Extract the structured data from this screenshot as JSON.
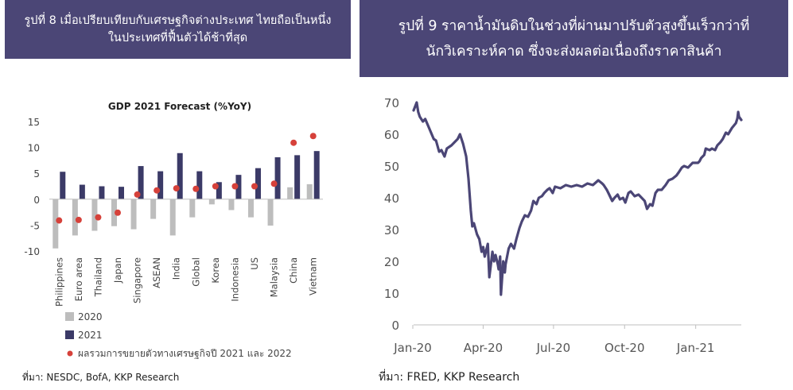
{
  "left_panel": {
    "banner": {
      "line1": "รูปที่ 8 เมื่อเปรียบเทียบกับเศรษฐกิจต่างประเทศ ไทยถือเป็นหนึ่ง",
      "line2": "ในประเทศที่ฟื้นตัวได้ช้าที่สุด"
    },
    "source": "ที่มา: NESDC, BofA, KKP Research"
  },
  "right_panel": {
    "banner": {
      "line1": "รูปที่ 9 ราคาน้ำมันดิบในช่วงที่ผ่านมาปรับตัวสูงขึ้นเร็วกว่าที่",
      "line2": "นักวิเคราะห์คาด ซึ่งจะส่งผลต่อเนื่องถึงราคาสินค้า"
    },
    "source": "ที่มา: FRED, KKP Research"
  },
  "colors": {
    "banner": "#4b4676",
    "bar_2020": "#bdbdbd",
    "bar_2021": "#3b3a67",
    "dot": "#d6413a",
    "line": "#4b4676",
    "grid": "#d9d9d9"
  },
  "chart_data": [
    {
      "type": "bar",
      "title": "GDP 2021 Forecast (%YoY)",
      "categories": [
        "Philippines",
        "Euro area",
        "Thailand",
        "Japan",
        "Singapore",
        "ASEAN",
        "India",
        "Global",
        "Korea",
        "Indonesia",
        "US",
        "Malaysia",
        "China",
        "Vietnam"
      ],
      "ylim": [
        -10,
        15
      ],
      "yticks": [
        -10,
        -5,
        0,
        5,
        10,
        15
      ],
      "ytick_labels": [
        "-10",
        "-5",
        "0",
        "5",
        "10",
        "15"
      ],
      "grid": false,
      "legend_position": "bottom",
      "series": [
        {
          "name": "2020",
          "type": "bar",
          "color": "#bdbdbd",
          "values": [
            -9.5,
            -7.0,
            -6.1,
            -5.2,
            -5.8,
            -3.8,
            -7.0,
            -3.5,
            -1.0,
            -2.1,
            -3.5,
            -5.1,
            2.3,
            2.9
          ]
        },
        {
          "name": "2021",
          "type": "bar",
          "color": "#3b3a67",
          "values": [
            5.3,
            2.8,
            2.5,
            2.4,
            6.4,
            5.4,
            8.9,
            5.4,
            3.3,
            4.7,
            6.0,
            8.1,
            8.5,
            9.3
          ]
        },
        {
          "name": "ผลรวมการขยายตัวทางเศรษฐกิจปี 2021 และ 2022",
          "type": "scatter",
          "color": "#d6413a",
          "values": [
            -4.1,
            -4.0,
            -3.5,
            -2.6,
            0.9,
            1.7,
            2.1,
            2.0,
            2.5,
            2.5,
            2.5,
            3.0,
            10.9,
            12.2
          ]
        }
      ]
    },
    {
      "type": "line",
      "title": "",
      "xlabel": "",
      "ylabel": "",
      "ylim": [
        0,
        70
      ],
      "yticks": [
        0,
        10,
        20,
        30,
        40,
        50,
        60,
        70
      ],
      "ytick_labels": [
        "0",
        "10",
        "20",
        "30",
        "40",
        "50",
        "60",
        "70"
      ],
      "x_start": "2020-01-02",
      "x_end": "2021-03-01",
      "xticks": [
        "2020-01-01",
        "2020-04-01",
        "2020-07-01",
        "2020-10-01",
        "2021-01-01"
      ],
      "xtick_labels": [
        "Jan-20",
        "Apr-20",
        "Jul-20",
        "Oct-20",
        "Jan-21"
      ],
      "grid": false,
      "series": [
        {
          "name": "",
          "color": "#4b4676",
          "points": [
            [
              "2020-01-02",
              67.5
            ],
            [
              "2020-01-06",
              70.0
            ],
            [
              "2020-01-08",
              67.0
            ],
            [
              "2020-01-10",
              65.5
            ],
            [
              "2020-01-14",
              64.0
            ],
            [
              "2020-01-17",
              64.8
            ],
            [
              "2020-01-22",
              62.0
            ],
            [
              "2020-01-28",
              58.5
            ],
            [
              "2020-01-31",
              58.0
            ],
            [
              "2020-02-04",
              54.5
            ],
            [
              "2020-02-07",
              55.0
            ],
            [
              "2020-02-11",
              53.0
            ],
            [
              "2020-02-14",
              55.5
            ],
            [
              "2020-02-20",
              56.5
            ],
            [
              "2020-02-24",
              57.5
            ],
            [
              "2020-02-28",
              58.5
            ],
            [
              "2020-03-02",
              60.0
            ],
            [
              "2020-03-06",
              57.0
            ],
            [
              "2020-03-10",
              53.0
            ],
            [
              "2020-03-13",
              46.0
            ],
            [
              "2020-03-16",
              36.0
            ],
            [
              "2020-03-18",
              31.0
            ],
            [
              "2020-03-20",
              32.0
            ],
            [
              "2020-03-24",
              28.5
            ],
            [
              "2020-03-27",
              27.0
            ],
            [
              "2020-03-30",
              23.0
            ],
            [
              "2020-04-01",
              24.5
            ],
            [
              "2020-04-03",
              21.5
            ],
            [
              "2020-04-07",
              25.5
            ],
            [
              "2020-04-09",
              15.0
            ],
            [
              "2020-04-13",
              23.0
            ],
            [
              "2020-04-15",
              20.0
            ],
            [
              "2020-04-17",
              22.0
            ],
            [
              "2020-04-20",
              19.0
            ],
            [
              "2020-04-21",
              17.5
            ],
            [
              "2020-04-23",
              21.5
            ],
            [
              "2020-04-24",
              9.5
            ],
            [
              "2020-04-27",
              20.0
            ],
            [
              "2020-04-29",
              16.5
            ],
            [
              "2020-04-30",
              19.0
            ],
            [
              "2020-05-04",
              24.0
            ],
            [
              "2020-05-07",
              25.5
            ],
            [
              "2020-05-11",
              24.0
            ],
            [
              "2020-05-14",
              27.0
            ],
            [
              "2020-05-18",
              30.5
            ],
            [
              "2020-05-21",
              32.5
            ],
            [
              "2020-05-25",
              34.5
            ],
            [
              "2020-05-29",
              34.0
            ],
            [
              "2020-06-02",
              36.0
            ],
            [
              "2020-06-05",
              39.0
            ],
            [
              "2020-06-09",
              38.0
            ],
            [
              "2020-06-12",
              40.0
            ],
            [
              "2020-06-16",
              40.5
            ],
            [
              "2020-06-19",
              41.5
            ],
            [
              "2020-06-23",
              42.5
            ],
            [
              "2020-06-26",
              43.0
            ],
            [
              "2020-06-30",
              41.5
            ],
            [
              "2020-07-03",
              43.5
            ],
            [
              "2020-07-10",
              43.0
            ],
            [
              "2020-07-17",
              44.0
            ],
            [
              "2020-07-24",
              43.5
            ],
            [
              "2020-07-31",
              44.0
            ],
            [
              "2020-08-07",
              43.5
            ],
            [
              "2020-08-14",
              44.5
            ],
            [
              "2020-08-21",
              44.0
            ],
            [
              "2020-08-28",
              45.5
            ],
            [
              "2020-09-02",
              44.5
            ],
            [
              "2020-09-04",
              44.0
            ],
            [
              "2020-09-08",
              42.5
            ],
            [
              "2020-09-10",
              41.5
            ],
            [
              "2020-09-15",
              39.0
            ],
            [
              "2020-09-18",
              40.0
            ],
            [
              "2020-09-22",
              41.0
            ],
            [
              "2020-09-25",
              39.5
            ],
            [
              "2020-09-29",
              40.0
            ],
            [
              "2020-10-02",
              38.5
            ],
            [
              "2020-10-06",
              41.5
            ],
            [
              "2020-10-09",
              42.0
            ],
            [
              "2020-10-14",
              40.5
            ],
            [
              "2020-10-19",
              41.0
            ],
            [
              "2020-10-23",
              40.0
            ],
            [
              "2020-10-27",
              39.0
            ],
            [
              "2020-10-30",
              36.5
            ],
            [
              "2020-11-03",
              38.0
            ],
            [
              "2020-11-06",
              37.5
            ],
            [
              "2020-11-10",
              41.5
            ],
            [
              "2020-11-13",
              42.5
            ],
            [
              "2020-11-18",
              42.5
            ],
            [
              "2020-11-23",
              44.0
            ],
            [
              "2020-11-27",
              45.5
            ],
            [
              "2020-12-02",
              46.0
            ],
            [
              "2020-12-07",
              47.0
            ],
            [
              "2020-12-10",
              48.0
            ],
            [
              "2020-12-14",
              49.5
            ],
            [
              "2020-12-17",
              50.0
            ],
            [
              "2020-12-22",
              49.5
            ],
            [
              "2020-12-28",
              51.0
            ],
            [
              "2021-01-04",
              51.0
            ],
            [
              "2021-01-06",
              51.5
            ],
            [
              "2021-01-08",
              52.5
            ],
            [
              "2021-01-12",
              53.5
            ],
            [
              "2021-01-14",
              55.5
            ],
            [
              "2021-01-19",
              55.0
            ],
            [
              "2021-01-22",
              55.5
            ],
            [
              "2021-01-26",
              55.0
            ],
            [
              "2021-01-29",
              56.5
            ],
            [
              "2021-02-02",
              57.5
            ],
            [
              "2021-02-05",
              58.5
            ],
            [
              "2021-02-09",
              60.5
            ],
            [
              "2021-02-12",
              60.0
            ],
            [
              "2021-02-17",
              62.0
            ],
            [
              "2021-02-22",
              63.5
            ],
            [
              "2021-02-24",
              65.0
            ],
            [
              "2021-02-25",
              67.0
            ],
            [
              "2021-02-26",
              65.5
            ],
            [
              "2021-03-01",
              64.5
            ]
          ]
        }
      ]
    }
  ]
}
